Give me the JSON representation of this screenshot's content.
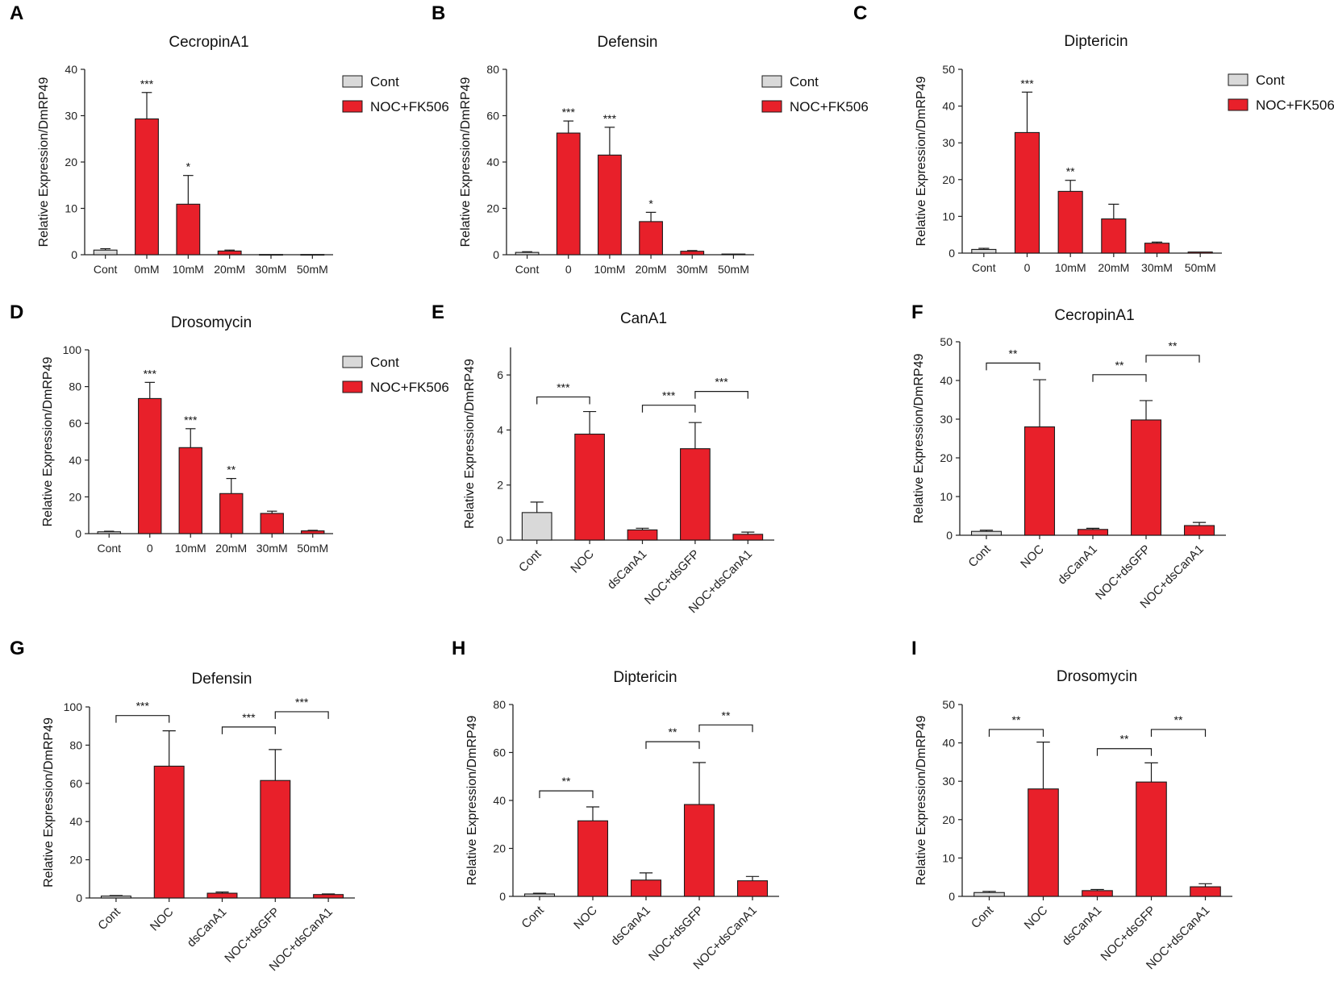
{
  "colors": {
    "cont": "#d9d9d9",
    "treat": "#e8202a",
    "stroke": "#1a1a1a",
    "axis": "#222222"
  },
  "y_axis_label": "Relative Expression/DmRP49",
  "chart_data": [
    {
      "panel": "A",
      "type": "bar",
      "title": "CecropinA1",
      "ylabel": "Relative Expression/DmRP49",
      "ylim": [
        0,
        40
      ],
      "yticks": [
        0,
        10,
        20,
        30,
        40
      ],
      "categories": [
        "Cont",
        "0mM",
        "10mM",
        "20mM",
        "30mM",
        "50mM"
      ],
      "values": [
        1.0,
        29.3,
        10.9,
        0.8,
        0.05,
        0.05
      ],
      "errors": [
        0.3,
        5.7,
        6.2,
        0.2,
        0,
        0
      ],
      "groups": [
        "Cont",
        "NOC+FK506",
        "NOC+FK506",
        "NOC+FK506",
        "NOC+FK506",
        "NOC+FK506"
      ],
      "sig": [
        "",
        "***",
        "*",
        "",
        "",
        ""
      ],
      "brackets": [],
      "legend": [
        "Cont",
        "NOC+FK506"
      ],
      "xrot": false
    },
    {
      "panel": "B",
      "type": "bar",
      "title": "Defensin",
      "ylabel": "Relative Expression/DmRP49",
      "ylim": [
        0,
        80
      ],
      "yticks": [
        0,
        20,
        40,
        60,
        80
      ],
      "categories": [
        "Cont",
        "0",
        "10mM",
        "20mM",
        "30mM",
        "50mM"
      ],
      "values": [
        1.0,
        52.5,
        43.0,
        14.3,
        1.5,
        0.3
      ],
      "errors": [
        0.3,
        5.2,
        12.0,
        4.0,
        0.3,
        0
      ],
      "groups": [
        "Cont",
        "NOC+FK506",
        "NOC+FK506",
        "NOC+FK506",
        "NOC+FK506",
        "NOC+FK506"
      ],
      "sig": [
        "",
        "***",
        "***",
        "*",
        "",
        ""
      ],
      "brackets": [],
      "legend": [
        "Cont",
        "NOC+FK506"
      ],
      "xrot": false
    },
    {
      "panel": "C",
      "type": "bar",
      "title": "Diptericin",
      "ylabel": "Relative Expression/DmRP49",
      "ylim": [
        0,
        50
      ],
      "yticks": [
        0,
        10,
        20,
        30,
        40,
        50
      ],
      "categories": [
        "Cont",
        "0",
        "10mM",
        "20mM",
        "30mM",
        "50mM"
      ],
      "values": [
        1.0,
        32.8,
        16.8,
        9.3,
        2.7,
        0.3
      ],
      "errors": [
        0.3,
        11.0,
        3.0,
        4.0,
        0.3,
        0
      ],
      "groups": [
        "Cont",
        "NOC+FK506",
        "NOC+FK506",
        "NOC+FK506",
        "NOC+FK506",
        "NOC+FK506"
      ],
      "sig": [
        "",
        "***",
        "**",
        "",
        "",
        ""
      ],
      "brackets": [],
      "legend": [
        "Cont",
        "NOC+FK506"
      ],
      "xrot": false
    },
    {
      "panel": "D",
      "type": "bar",
      "title": "Drosomycin",
      "ylabel": "Relative Expression/DmRP49",
      "ylim": [
        0,
        100
      ],
      "yticks": [
        0,
        20,
        40,
        60,
        80,
        100
      ],
      "categories": [
        "Cont",
        "0",
        "10mM",
        "20mM",
        "30mM",
        "50mM"
      ],
      "values": [
        1.0,
        73.5,
        46.8,
        21.8,
        11.0,
        1.5
      ],
      "errors": [
        0.3,
        8.8,
        10.3,
        8.2,
        1.2,
        0.3
      ],
      "groups": [
        "Cont",
        "NOC+FK506",
        "NOC+FK506",
        "NOC+FK506",
        "NOC+FK506",
        "NOC+FK506"
      ],
      "sig": [
        "",
        "***",
        "***",
        "**",
        "",
        ""
      ],
      "brackets": [],
      "legend": [
        "Cont",
        "NOC+FK506"
      ],
      "xrot": false
    },
    {
      "panel": "E",
      "type": "bar",
      "title": "CanA1",
      "ylabel": "Relative Expression/DmRP49",
      "ylim": [
        0,
        7
      ],
      "yticks": [
        0,
        2,
        4,
        6
      ],
      "categories": [
        "Cont",
        "NOC",
        "dsCanA1",
        "NOC+dsGFP",
        "NOC+dsCanA1"
      ],
      "values": [
        1.0,
        3.85,
        0.37,
        3.32,
        0.21
      ],
      "errors": [
        0.38,
        0.82,
        0.06,
        0.95,
        0.08
      ],
      "groups": [
        "Cont",
        "NOC+FK506",
        "NOC+FK506",
        "NOC+FK506",
        "NOC+FK506"
      ],
      "sig": [
        "",
        "",
        "",
        "",
        ""
      ],
      "brackets": [
        {
          "from": 0,
          "to": 1,
          "label": "***",
          "y": 5.2
        },
        {
          "from": 2,
          "to": 3,
          "label": "***",
          "y": 4.9
        },
        {
          "from": 3,
          "to": 4,
          "label": "***",
          "y": 5.4
        }
      ],
      "legend": [],
      "xrot": true
    },
    {
      "panel": "F",
      "type": "bar",
      "title": "CecropinA1",
      "ylabel": "Relative Expression/DmRP49",
      "ylim": [
        0,
        50
      ],
      "yticks": [
        0,
        10,
        20,
        30,
        40,
        50
      ],
      "categories": [
        "Cont",
        "NOC",
        "dsCanA1",
        "NOC+dsGFP",
        "NOC+dsCanA1"
      ],
      "values": [
        1.0,
        28.0,
        1.5,
        29.8,
        2.5
      ],
      "errors": [
        0.3,
        12.2,
        0.3,
        5.0,
        0.8
      ],
      "groups": [
        "Cont",
        "NOC+FK506",
        "NOC+FK506",
        "NOC+FK506",
        "NOC+FK506"
      ],
      "sig": [
        "",
        "",
        "",
        "",
        ""
      ],
      "brackets": [
        {
          "from": 0,
          "to": 1,
          "label": "**",
          "y": 44.5
        },
        {
          "from": 2,
          "to": 3,
          "label": "**",
          "y": 41.5
        },
        {
          "from": 3,
          "to": 4,
          "label": "**",
          "y": 46.5
        }
      ],
      "legend": [],
      "xrot": true
    },
    {
      "panel": "G",
      "type": "bar",
      "title": "Defensin",
      "ylabel": "Relative Expression/DmRP49",
      "ylim": [
        0,
        100
      ],
      "yticks": [
        0,
        20,
        40,
        60,
        80,
        100
      ],
      "categories": [
        "Cont",
        "NOC",
        "dsCanA1",
        "NOC+dsGFP",
        "NOC+dsCanA1"
      ],
      "values": [
        1.0,
        69.0,
        2.5,
        61.5,
        1.8
      ],
      "errors": [
        0.3,
        18.5,
        0.6,
        16.2,
        0.3
      ],
      "groups": [
        "Cont",
        "NOC+FK506",
        "NOC+FK506",
        "NOC+FK506",
        "NOC+FK506"
      ],
      "sig": [
        "",
        "",
        "",
        "",
        ""
      ],
      "brackets": [
        {
          "from": 0,
          "to": 1,
          "label": "***",
          "y": 95.5
        },
        {
          "from": 2,
          "to": 3,
          "label": "***",
          "y": 89.5
        },
        {
          "from": 3,
          "to": 4,
          "label": "***",
          "y": 97.5
        }
      ],
      "legend": [],
      "xrot": true
    },
    {
      "panel": "H",
      "type": "bar",
      "title": "Diptericin",
      "ylabel": "Relative Expression/DmRP49",
      "ylim": [
        0,
        80
      ],
      "yticks": [
        0,
        20,
        40,
        60,
        80
      ],
      "categories": [
        "Cont",
        "NOC",
        "dsCanA1",
        "NOC+dsGFP",
        "NOC+dsCanA1"
      ],
      "values": [
        1.0,
        31.5,
        6.8,
        38.3,
        6.5
      ],
      "errors": [
        0.3,
        5.8,
        3.0,
        17.5,
        1.8
      ],
      "groups": [
        "Cont",
        "NOC+FK506",
        "NOC+FK506",
        "NOC+FK506",
        "NOC+FK506"
      ],
      "sig": [
        "",
        "",
        "",
        "",
        ""
      ],
      "brackets": [
        {
          "from": 0,
          "to": 1,
          "label": "**",
          "y": 44.0
        },
        {
          "from": 2,
          "to": 3,
          "label": "**",
          "y": 64.5
        },
        {
          "from": 3,
          "to": 4,
          "label": "**",
          "y": 71.5
        }
      ],
      "legend": [],
      "xrot": true
    },
    {
      "panel": "I",
      "type": "bar",
      "title": "Drosomycin",
      "ylabel": "Relative Expression/DmRP49",
      "ylim": [
        0,
        50
      ],
      "yticks": [
        0,
        10,
        20,
        30,
        40,
        50
      ],
      "categories": [
        "Cont",
        "NOC",
        "dsCanA1",
        "NOC+dsGFP",
        "NOC+dsCanA1"
      ],
      "values": [
        1.0,
        28.0,
        1.5,
        29.8,
        2.5
      ],
      "errors": [
        0.3,
        12.2,
        0.3,
        5.0,
        0.8
      ],
      "groups": [
        "Cont",
        "NOC+FK506",
        "NOC+FK506",
        "NOC+FK506",
        "NOC+FK506"
      ],
      "sig": [
        "",
        "",
        "",
        "",
        ""
      ],
      "brackets": [
        {
          "from": 0,
          "to": 1,
          "label": "**",
          "y": 43.5
        },
        {
          "from": 2,
          "to": 3,
          "label": "**",
          "y": 38.5
        },
        {
          "from": 3,
          "to": 4,
          "label": "**",
          "y": 43.5
        }
      ],
      "legend": [],
      "xrot": true
    }
  ]
}
